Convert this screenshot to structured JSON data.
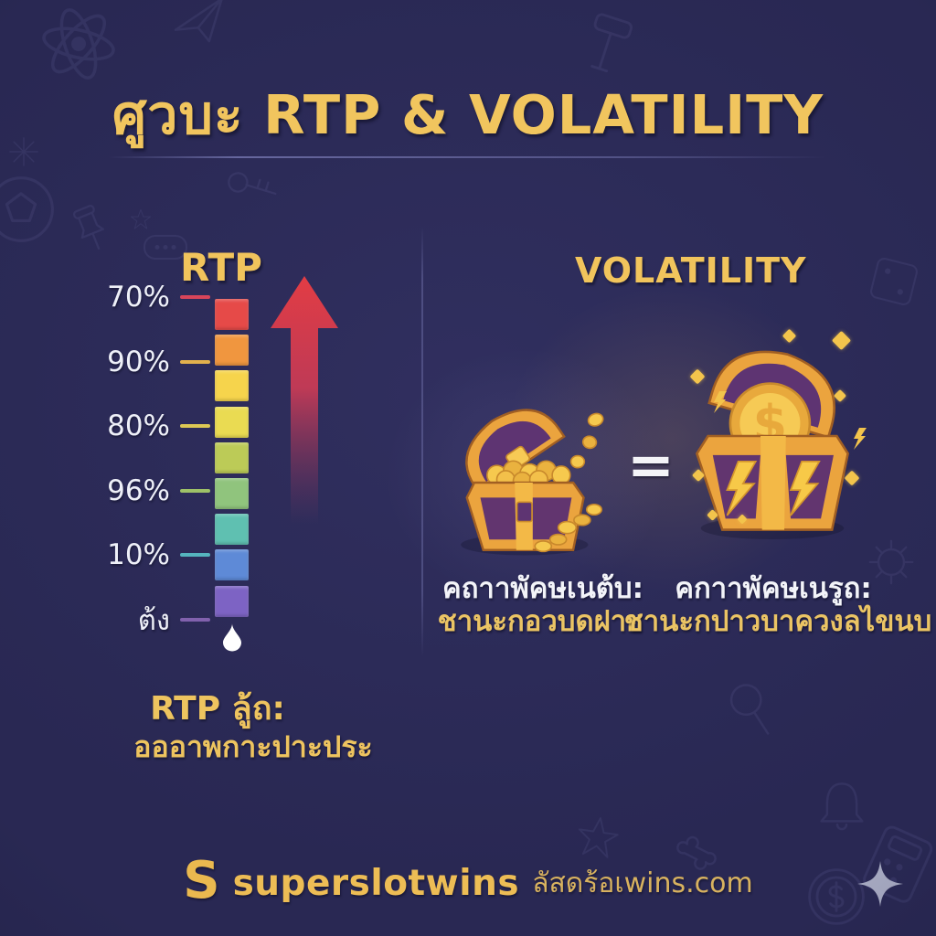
{
  "title": "ศูวบะ RTP & VOLATILITY",
  "rtp": {
    "heading": "RTP",
    "ticks": [
      {
        "label": "70%",
        "color": "#d8455a"
      },
      {
        "label": "90%",
        "color": "#e2b14d"
      },
      {
        "label": "80%",
        "color": "#ddc854"
      },
      {
        "label": "96%",
        "color": "#9ec168"
      },
      {
        "label": "10%",
        "color": "#55b4be"
      },
      {
        "label": "ต้ง",
        "color": "#8161ad"
      }
    ],
    "scale_segments": [
      "#e64a48",
      "#f0963f",
      "#f6d44c",
      "#eadb52",
      "#bccb57",
      "#90c47d",
      "#5fc0b1",
      "#5e8ad7",
      "#7d63c4"
    ],
    "arrow_color": "#dd3b45",
    "caption_line1": "RTP ลู้ถ:",
    "caption_line2": "อออาพกาะปาะประ"
  },
  "volatility": {
    "heading": "VOLATILITY",
    "equals_sign": "=",
    "low": {
      "caption_line1": "คถาาพัคษเนต้บ:",
      "caption_line2": "ชานะกอวบดฝาย"
    },
    "high": {
      "caption_line1": "คกาาพัคษเนรูถ:",
      "caption_line2": "ชานะกปาวบาควงลไขนบ"
    }
  },
  "footer": {
    "logo_letter": "S",
    "brand": "superslotwins",
    "domain": "ลัสดร้อเwins.com"
  },
  "colors": {
    "background": "#292853",
    "gold_heading": "#f1c55e",
    "gold_text": "#ebc464",
    "white_text": "#f3f4f9",
    "chest_purple": "#5e3472",
    "chest_gold": "#eba43e"
  },
  "background_icons": [
    "atom-icon",
    "paper-plane-icon",
    "hammer-icon",
    "chat-bubble-icon",
    "key-icon",
    "snowflake-icon",
    "soccer-ball-icon",
    "pushpin-icon",
    "star-icon",
    "dice-icon",
    "gear-icon",
    "magnifier-icon",
    "bell-icon",
    "starfish-icon",
    "bone-icon",
    "dollar-coin-icon",
    "calculator-icon"
  ]
}
